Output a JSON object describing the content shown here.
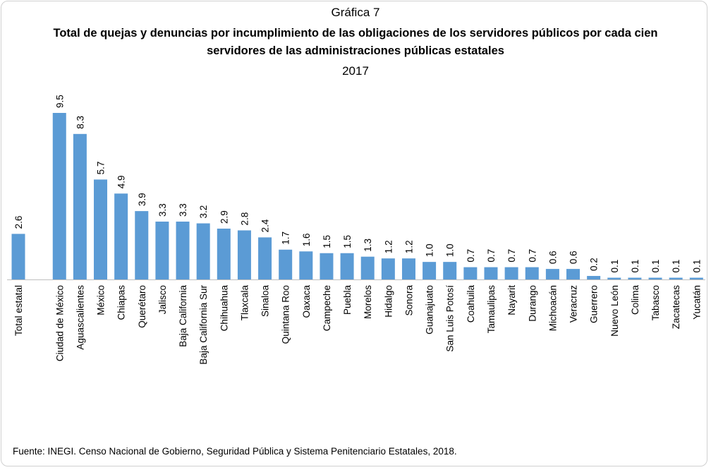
{
  "chart_data": {
    "type": "bar",
    "title_prefix": "Gráfica 7",
    "title": "Total de quejas y denuncias por incumplimiento de las obligaciones de los servidores públicos por cada cien servidores de las administraciones públicas estatales",
    "subtitle": "2017",
    "categories": [
      "Total estatal",
      "Ciudad de México",
      "Aguascalientes",
      "México",
      "Chiapas",
      "Querétaro",
      "Jalisco",
      "Baja California",
      "Baja California Sur",
      "Chihuahua",
      "Tlaxcala",
      "Sinaloa",
      "Quintana Roo",
      "Oaxaca",
      "Campeche",
      "Puebla",
      "Morelos",
      "Hidalgo",
      "Sonora",
      "Guanajuato",
      "San Luis Potosí",
      "Coahuila",
      "Tamaulipas",
      "Nayarit",
      "Durango",
      "Michoacán",
      "Veracruz",
      "Guerrero",
      "Nuevo León",
      "Colima",
      "Tabasco",
      "Zacatecas",
      "Yucatán"
    ],
    "values": [
      2.6,
      9.5,
      8.3,
      5.7,
      4.9,
      3.9,
      3.3,
      3.3,
      3.2,
      2.9,
      2.8,
      2.4,
      1.7,
      1.6,
      1.5,
      1.5,
      1.3,
      1.2,
      1.2,
      1.0,
      1.0,
      0.7,
      0.7,
      0.7,
      0.7,
      0.6,
      0.6,
      0.2,
      0.1,
      0.1,
      0.1,
      0.1,
      0.1
    ],
    "value_labels": [
      "2.6",
      "9.5",
      "8.3",
      "5.7",
      "4.9",
      "3.9",
      "3.3",
      "3.3",
      "3.2",
      "2.9",
      "2.8",
      "2.4",
      "1.7",
      "1.6",
      "1.5",
      "1.5",
      "1.3",
      "1.2",
      "1.2",
      "1.0",
      "1.0",
      "0.7",
      "0.7",
      "0.7",
      "0.7",
      "0.6",
      "0.6",
      "0.2",
      "0.1",
      "0.1",
      "0.1",
      "0.1",
      "0.1"
    ],
    "ylim": [
      0,
      9.5
    ],
    "grid": false,
    "legend": "none",
    "bar_color": "#5b9bd5"
  },
  "source": "Fuente: INEGI.  Censo Nacional de Gobierno, Seguridad Pública y Sistema Penitenciario Estatales, 2018."
}
